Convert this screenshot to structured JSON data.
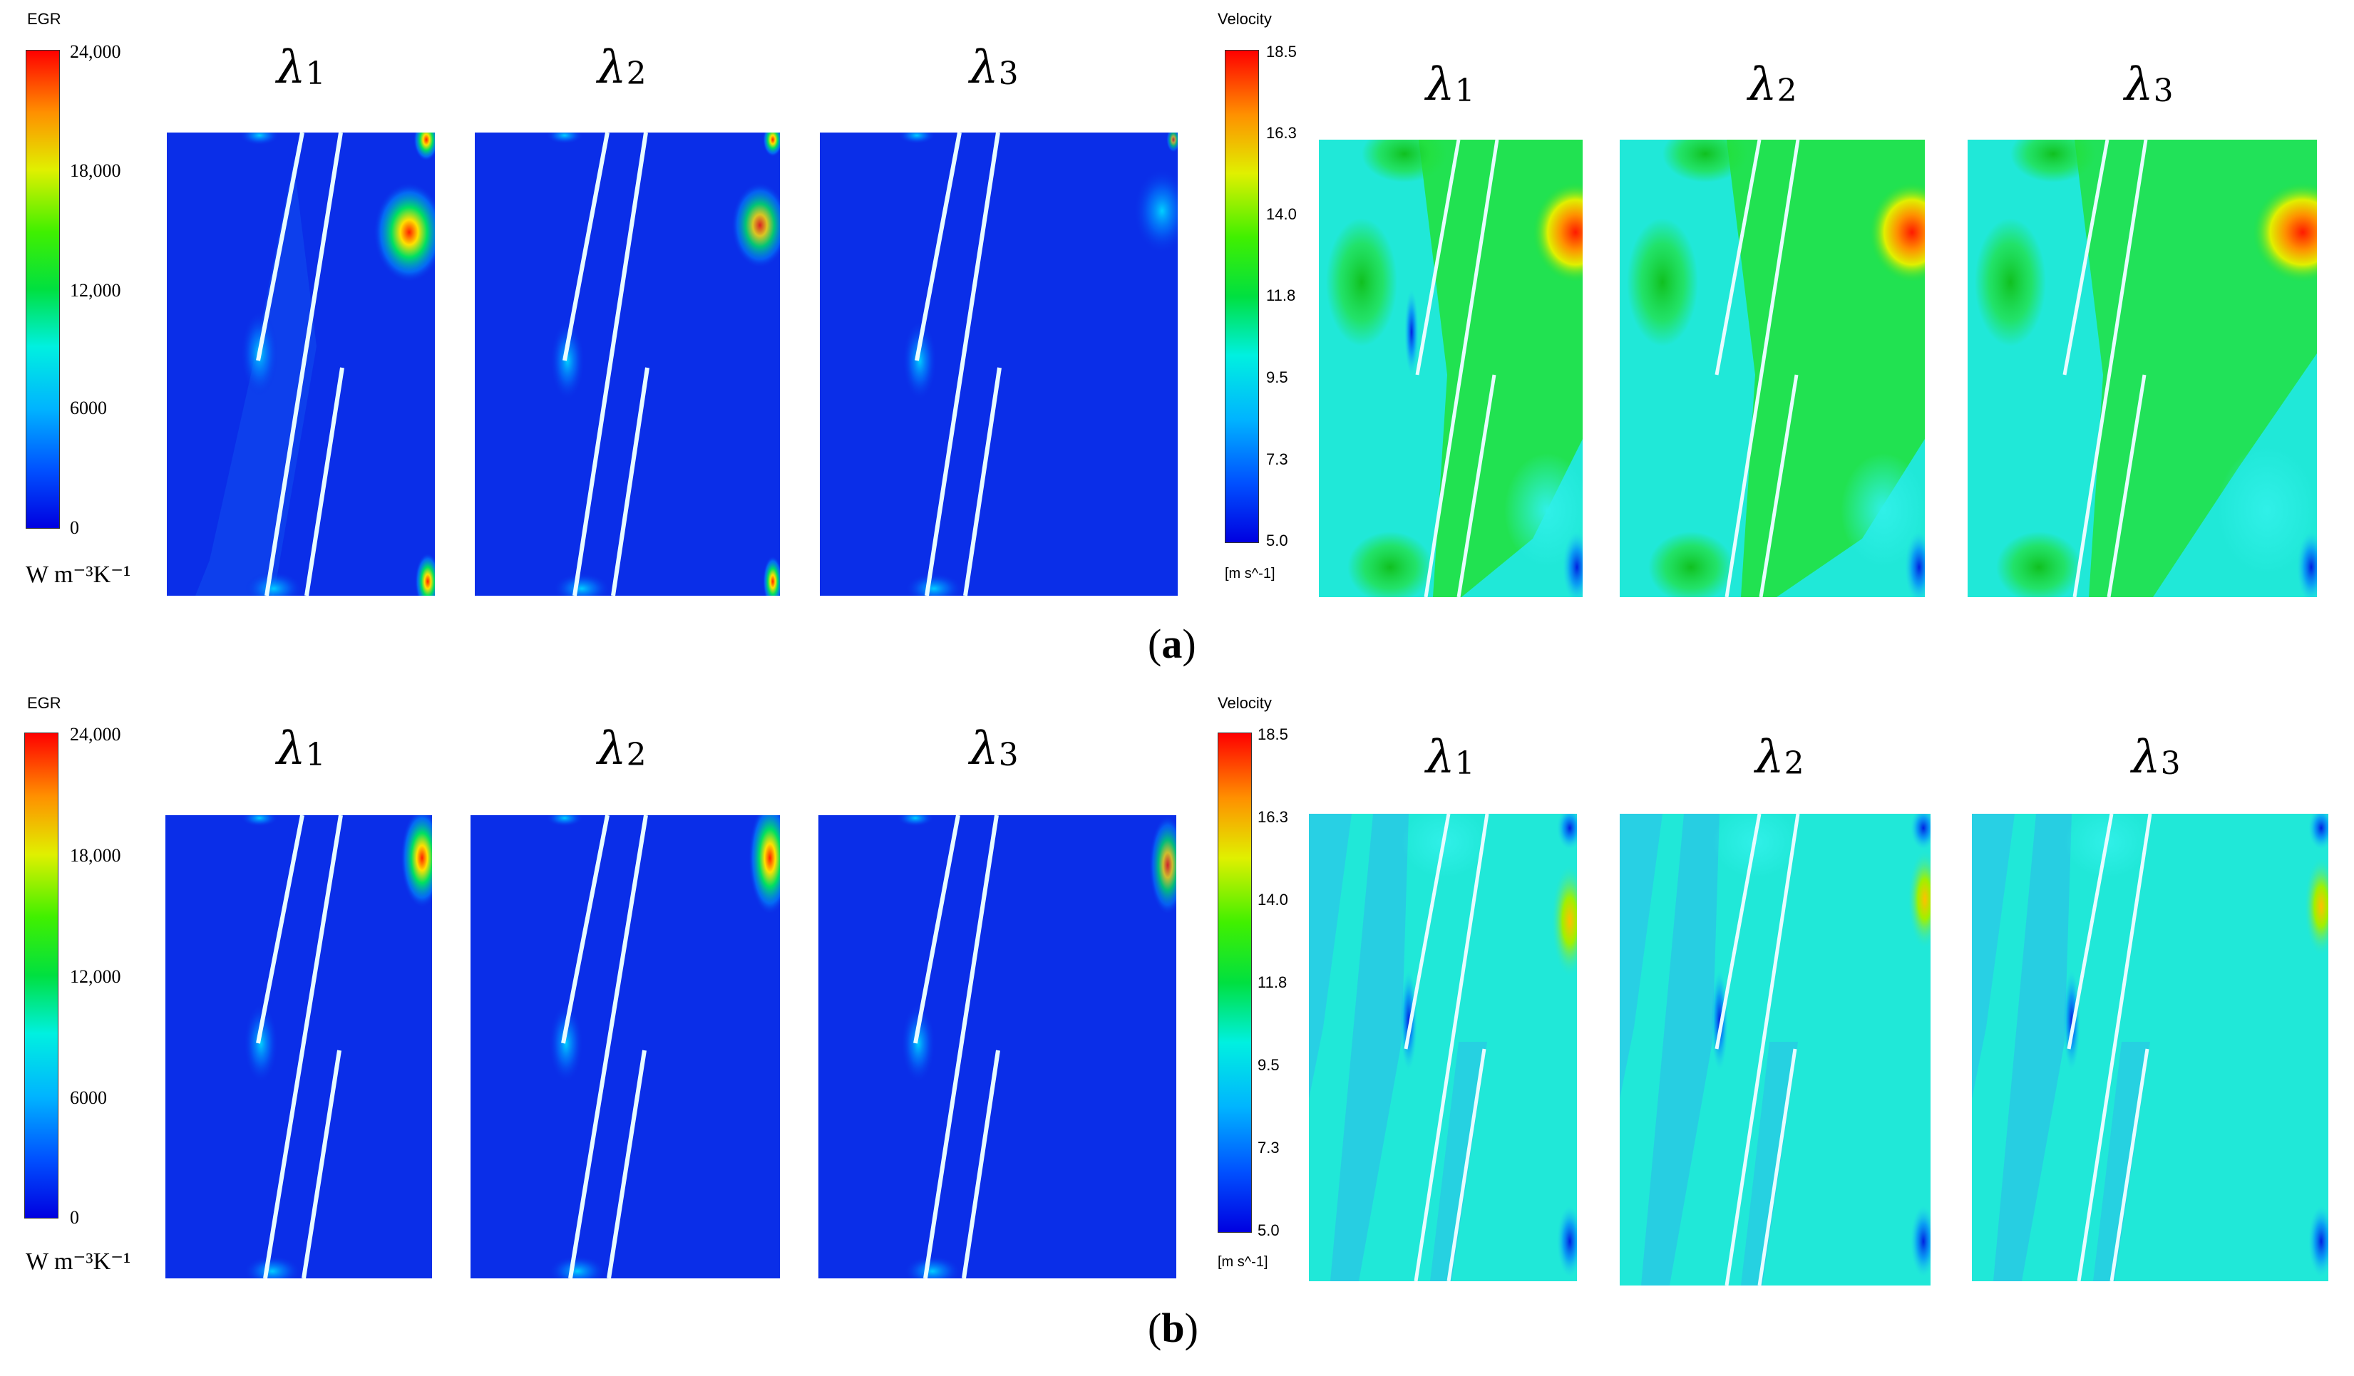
{
  "egr_colorbar": {
    "title": "EGR",
    "ticks": [
      "24,000",
      "18,000",
      "12,000",
      "6000",
      "0"
    ],
    "unit": "W m⁻³K⁻¹",
    "range": [
      0,
      24000
    ]
  },
  "velocity_colorbar": {
    "title": "Velocity",
    "ticks": [
      "18.5",
      "16.3",
      "14.0",
      "11.8",
      "9.5",
      "7.3",
      "5.0"
    ],
    "unit_a": "[m s^-1]",
    "unit_b": "[m s^-1]",
    "range": [
      5.0,
      18.5
    ]
  },
  "column_labels": {
    "l1": "λ",
    "l2": "λ",
    "l3": "λ",
    "s1": "1",
    "s2": "2",
    "s3": "3"
  },
  "panel_labels": {
    "a_open": "(",
    "a_letter": "a",
    "a_close": ")",
    "b_open": "(",
    "b_letter": "b",
    "b_close": ")"
  },
  "colors": {
    "colormap": [
      "#0000ff",
      "#0064ff",
      "#00c8ff",
      "#00ffc8",
      "#00e600",
      "#c8ff00",
      "#ffe600",
      "#ff8c00",
      "#ff0000"
    ],
    "egr_background": "#0a2ee8",
    "velocity_green": "#22e03a",
    "velocity_cyan": "#20e8d8"
  }
}
